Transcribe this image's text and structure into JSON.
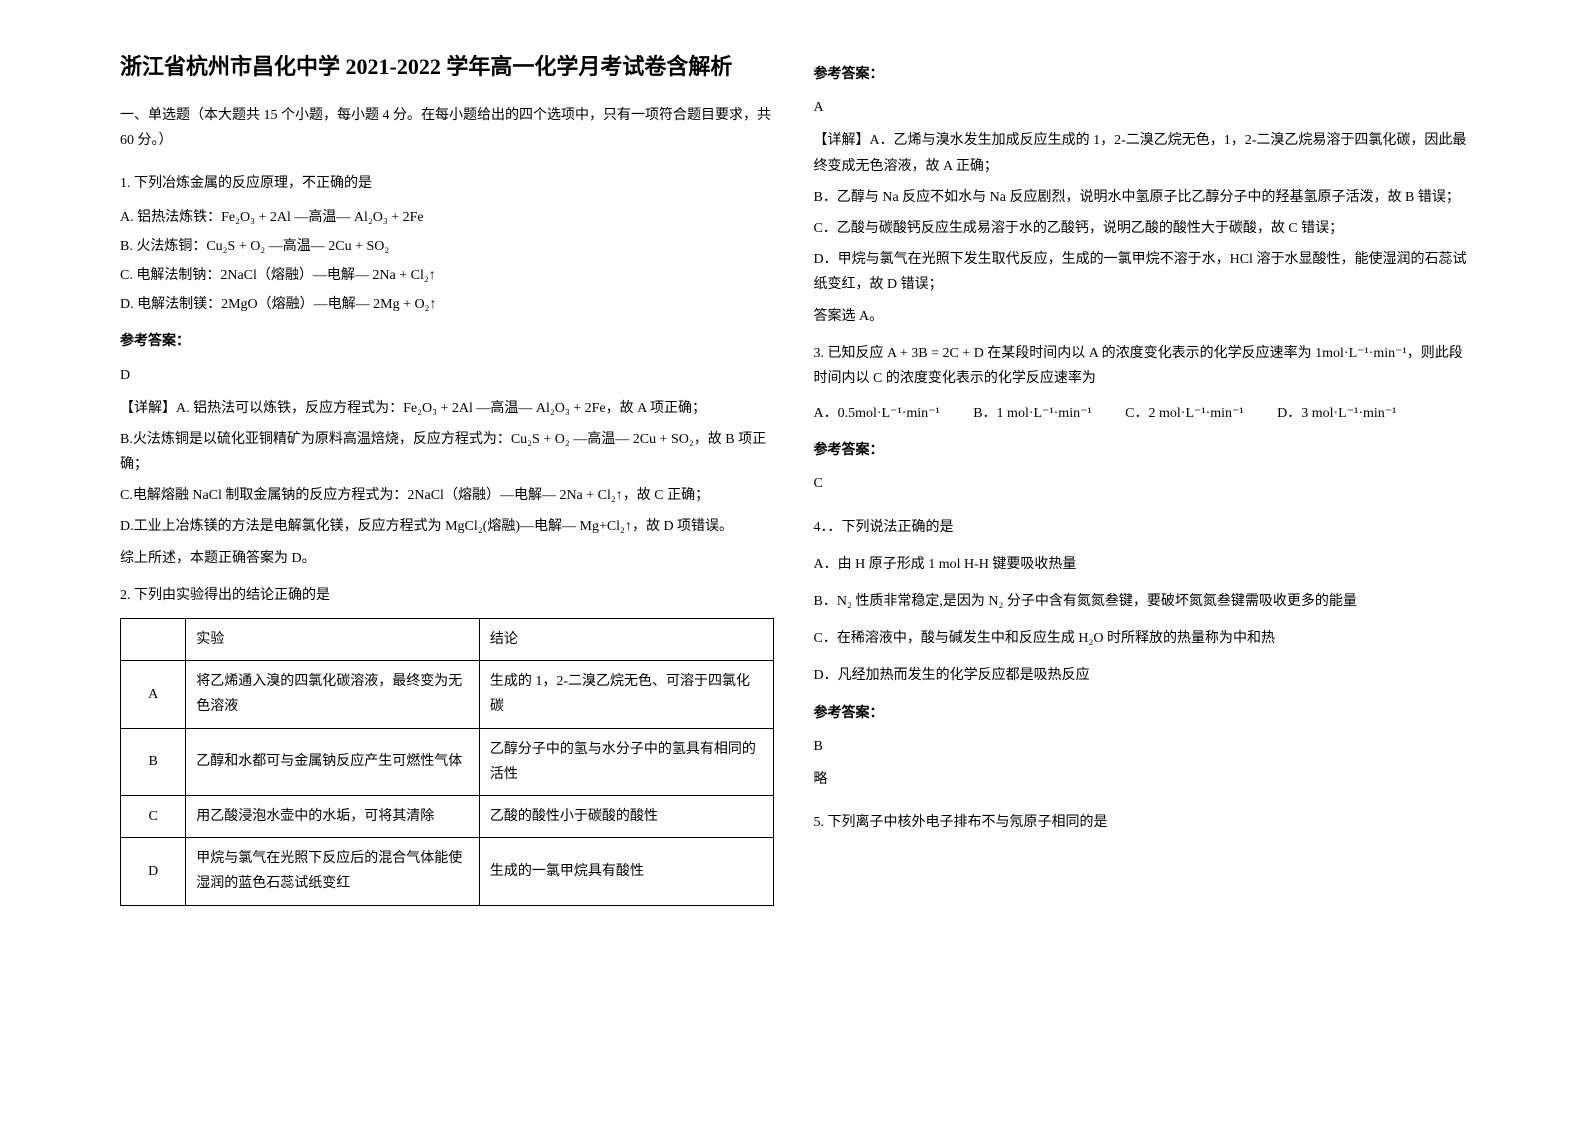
{
  "title": "浙江省杭州市昌化中学 2021-2022 学年高一化学月考试卷含解析",
  "section1": "一、单选题（本大题共 15 个小题，每小题 4 分。在每小题给出的四个选项中，只有一项符合题目要求，共 60 分。）",
  "q1": {
    "num": "1. 下列冶炼金属的反应原理，不正确的是",
    "optA": "A. 铝热法炼铁：Fe₂O₃ + 2Al —高温— Al₂O₃ + 2Fe",
    "optB": "B. 火法炼铜：Cu₂S + O₂ —高温— 2Cu + SO₂",
    "optC": "C. 电解法制钠：2NaCl（熔融）—电解— 2Na + Cl₂↑",
    "optD": "D. 电解法制镁：2MgO（熔融）—电解— 2Mg + O₂↑",
    "answerLabel": "参考答案：",
    "answerLetter": "D",
    "detailA": "【详解】A. 铝热法可以炼铁，反应方程式为：Fe₂O₃ + 2Al —高温— Al₂O₃ + 2Fe，故 A 项正确；",
    "detailB": "B.火法炼铜是以硫化亚铜精矿为原料高温焙烧，反应方程式为：Cu₂S + O₂ —高温— 2Cu + SO₂，故 B 项正确；",
    "detailC": "C.电解熔融 NaCl 制取金属钠的反应方程式为：2NaCl（熔融）—电解— 2Na + Cl₂↑，故 C 正确；",
    "detailD": "D.工业上冶炼镁的方法是电解氯化镁，反应方程式为 MgCl₂(熔融)—电解— Mg+Cl₂↑，故 D 项错误。",
    "summary": "综上所述，本题正确答案为 D。"
  },
  "q2": {
    "num": "2. 下列由实验得出的结论正确的是",
    "headerExp": "实验",
    "headerCon": "结论",
    "rowA_letter": "A",
    "rowA_exp": "将乙烯通入溴的四氯化碳溶液，最终变为无色溶液",
    "rowA_con": "生成的 1，2-二溴乙烷无色、可溶于四氯化碳",
    "rowB_letter": "B",
    "rowB_exp": "乙醇和水都可与金属钠反应产生可燃性气体",
    "rowB_con": "乙醇分子中的氢与水分子中的氢具有相同的活性",
    "rowC_letter": "C",
    "rowC_exp": "用乙酸浸泡水壶中的水垢，可将其清除",
    "rowC_con": "乙酸的酸性小于碳酸的酸性",
    "rowD_letter": "D",
    "rowD_exp": "甲烷与氯气在光照下反应后的混合气体能使湿润的蓝色石蕊试纸变红",
    "rowD_con": "生成的一氯甲烷具有酸性"
  },
  "q2_answer": {
    "answerLabel": "参考答案：",
    "answerLetter": "A",
    "detailA": "【详解】A．乙烯与溴水发生加成反应生成的 1，2-二溴乙烷无色，1，2-二溴乙烷易溶于四氯化碳，因此最终变成无色溶液，故 A 正确；",
    "detailB": "B．乙醇与 Na 反应不如水与 Na 反应剧烈，说明水中氢原子比乙醇分子中的羟基氢原子活泼，故 B 错误；",
    "detailC": "C．乙酸与碳酸钙反应生成易溶于水的乙酸钙，说明乙酸的酸性大于碳酸，故 C 错误；",
    "detailD": "D．甲烷与氯气在光照下发生取代反应，生成的一氯甲烷不溶于水，HCl 溶于水显酸性，能使湿润的石蕊试纸变红，故 D 错误；",
    "summary": "答案选 A。"
  },
  "q3": {
    "num": "3. 已知反应 A + 3B = 2C + D 在某段时间内以 A 的浓度变化表示的化学反应速率为 1mol·L⁻¹·min⁻¹，则此段时间内以 C 的浓度变化表示的化学反应速率为",
    "optA": "A．0.5mol·L⁻¹·min⁻¹",
    "optB": "B．1 mol·L⁻¹·min⁻¹",
    "optC": "C．2 mol·L⁻¹·min⁻¹",
    "optD": "D．3 mol·L⁻¹·min⁻¹",
    "answerLabel": "参考答案：",
    "answerLetter": "C"
  },
  "q4": {
    "num": "4．．下列说法正确的是",
    "optA": "A．由 H 原子形成 1 mol H-H 键要吸收热量",
    "optB": "B．N₂ 性质非常稳定,是因为 N₂ 分子中含有氮氮叁键，要破坏氮氮叁键需吸收更多的能量",
    "optC": "C．在稀溶液中，酸与碱发生中和反应生成 H₂O 时所释放的热量称为中和热",
    "optD": "D．凡经加热而发生的化学反应都是吸热反应",
    "answerLabel": "参考答案：",
    "answerLetter": "B",
    "summary": "略"
  },
  "q5": {
    "num": "5. 下列离子中核外电子排布不与氖原子相同的是"
  }
}
